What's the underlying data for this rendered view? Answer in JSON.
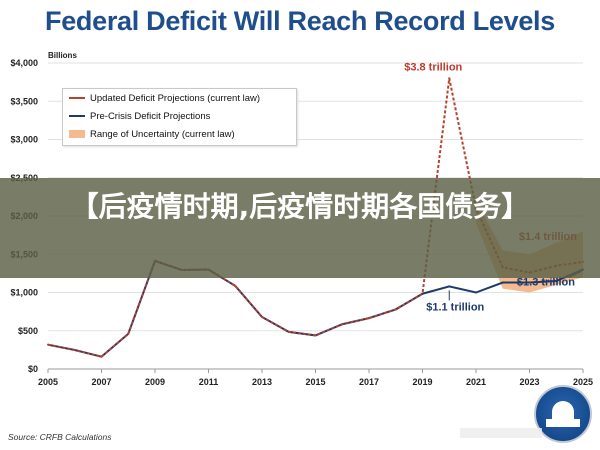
{
  "header": {
    "title": "Federal Deficit Will Reach Record Levels",
    "unit_label": "Billions"
  },
  "banner": {
    "text": "【后疫情时期,后疫情时期各国债务】"
  },
  "footer": {
    "source": "Source: CRFB Calculations"
  },
  "legend": {
    "items": [
      {
        "label": "Updated Deficit Projections (current law)",
        "color": "#b5432c",
        "kind": "line"
      },
      {
        "label": "Pre-Crisis Deficit Projections",
        "color": "#1c3a6b",
        "kind": "line"
      },
      {
        "label": "Range of Uncertainty (current law)",
        "color": "#f0a46e",
        "kind": "band"
      }
    ]
  },
  "chart_data": {
    "type": "line",
    "title": "Federal Deficit Will Reach Record Levels",
    "ylabel": "Billions",
    "xlabel": "",
    "xlim": [
      2005,
      2025
    ],
    "ylim": [
      0,
      4000
    ],
    "x_ticks": [
      "2005",
      "2007",
      "2009",
      "2011",
      "2013",
      "2015",
      "2017",
      "2019",
      "2021",
      "2023",
      "2025"
    ],
    "y_ticks": [
      "$0",
      "$500",
      "$1,000",
      "$1,500",
      "$2,000",
      "$2,500",
      "$3,000",
      "$3,500",
      "$4,000"
    ],
    "grid": true,
    "legend_position": "top-left",
    "series": [
      {
        "name": "Updated Deficit Projections (current law)",
        "color": "#b5432c",
        "x": [
          2005,
          2006,
          2007,
          2008,
          2009,
          2010,
          2011,
          2012,
          2013,
          2014,
          2015,
          2016,
          2017,
          2018,
          2019,
          2020,
          2021,
          2022,
          2023,
          2024,
          2025
        ],
        "values": [
          318,
          248,
          161,
          459,
          1413,
          1294,
          1300,
          1087,
          680,
          485,
          439,
          585,
          665,
          779,
          984,
          3800,
          2100,
          1330,
          1260,
          1350,
          1400
        ]
      },
      {
        "name": "Pre-Crisis Deficit Projections",
        "color": "#1c3a6b",
        "x": [
          2005,
          2006,
          2007,
          2008,
          2009,
          2010,
          2011,
          2012,
          2013,
          2014,
          2015,
          2016,
          2017,
          2018,
          2019,
          2020,
          2021,
          2022,
          2023,
          2024,
          2025
        ],
        "values": [
          318,
          248,
          161,
          459,
          1413,
          1294,
          1300,
          1087,
          680,
          485,
          439,
          585,
          665,
          779,
          984,
          1080,
          1000,
          1130,
          1130,
          1150,
          1300
        ]
      }
    ],
    "band": {
      "name": "Range of Uncertainty (current law)",
      "color": "#f0a46e",
      "x": [
        2021,
        2022,
        2023,
        2024,
        2025
      ],
      "low": [
        1900,
        1050,
        1000,
        1100,
        1200
      ],
      "high": [
        2200,
        1550,
        1500,
        1650,
        1800
      ]
    },
    "annotations": [
      {
        "text": "$3.8 trillion",
        "color": "#c0392b",
        "x": 2020,
        "y": 3800
      },
      {
        "text": "$1.4 trillion",
        "color": "#c0392b",
        "x": 2025,
        "y": 1400
      },
      {
        "text": "$1.1 trillion",
        "color": "#1c3a6b",
        "x": 2020,
        "y": 1080
      },
      {
        "text": "$1.3 trillion",
        "color": "#1c3a6b",
        "x": 2025,
        "y": 1300
      }
    ]
  }
}
